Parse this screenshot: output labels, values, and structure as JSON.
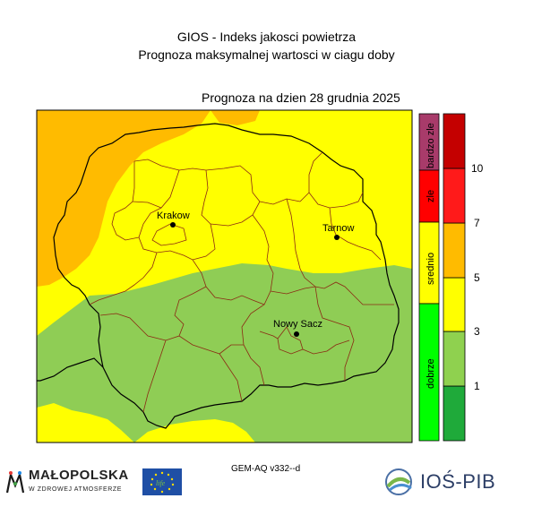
{
  "title": "GIOS - Indeks jakosci powietrza",
  "subtitle": "Prognoza maksymalnej wartosci w ciagu doby",
  "forecast_label": "Prognoza na dzien  28 grudnia 2025",
  "model_label": "GEM-AQ v332--d",
  "cities": [
    {
      "name": "Krakow"
    },
    {
      "name": "Tarnow"
    },
    {
      "name": "Nowy Sacz"
    }
  ],
  "categories": [
    {
      "label": "bardzo zle",
      "color": "#a83b6a"
    },
    {
      "label": "zle",
      "color": "#ff0000"
    },
    {
      "label": "srednio",
      "color": "#ffff00"
    },
    {
      "label": "dobrze",
      "color": "#00ff00"
    }
  ],
  "scale": {
    "ticks": [
      "1",
      "3",
      "5",
      "7",
      "10"
    ],
    "colors": [
      "#1faa3a",
      "#8fd14f",
      "#ffff00",
      "#ffbb00",
      "#ff1a1a",
      "#c40000"
    ]
  },
  "map_colors": {
    "green": "#8fcd55",
    "yellow": "#ffff00",
    "orange": "#ffbb00"
  },
  "logos": {
    "malopolska": "MAŁOPOLSKA",
    "malopolska_sub": "W ZDROWEJ ATMOSFERZE",
    "eu": "life",
    "pib": "IOŚ-PIB"
  }
}
